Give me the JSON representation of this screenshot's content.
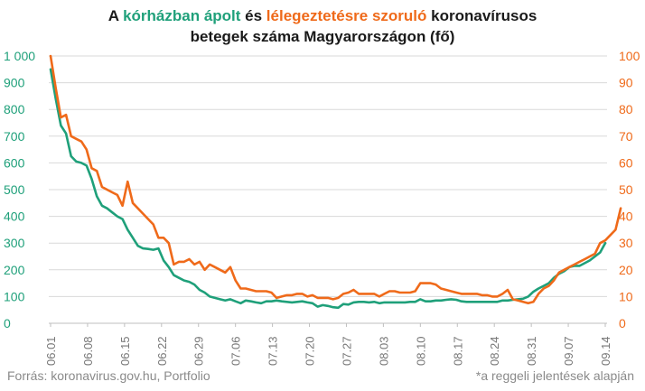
{
  "title": {
    "line1": {
      "prefix": "A ",
      "green": "kórházban ápolt",
      "middle": " és ",
      "orange": "lélegeztetésre szoruló",
      "suffix": " koronavírusos"
    },
    "line2": "betegek száma Magyarországon  (fő)"
  },
  "footer": {
    "source": "Forrás: koronavirus.gov.hu, Portfolio",
    "note": "*a reggeli jelentések alapján"
  },
  "colors": {
    "hospitalized": "#1fa07a",
    "ventilated": "#ef6a1a",
    "grid": "#d9d9d9",
    "axis_text": "#777777"
  },
  "chart_data": {
    "type": "line",
    "x_tick_labels": [
      "06.01",
      "06.08",
      "06.15",
      "06.22",
      "06.29",
      "07.06",
      "07.13",
      "07.20",
      "07.27",
      "08.03",
      "08.10",
      "08.17",
      "08.24",
      "08.31",
      "09.07",
      "09.14"
    ],
    "y_left": {
      "range": [
        0,
        1000
      ],
      "ticks": [
        "0",
        "100",
        "200",
        "300",
        "400",
        "500",
        "600",
        "700",
        "800",
        "900",
        "1 000"
      ]
    },
    "y_right": {
      "range": [
        0,
        100
      ],
      "ticks": [
        "0",
        "10",
        "20",
        "30",
        "40",
        "50",
        "60",
        "70",
        "80",
        "90",
        "100"
      ]
    },
    "grid": true,
    "series": [
      {
        "axis": "left",
        "color": "#1fa07a",
        "values": [
          950,
          840,
          740,
          710,
          625,
          605,
          600,
          590,
          540,
          475,
          440,
          430,
          415,
          400,
          390,
          350,
          320,
          290,
          280,
          278,
          275,
          280,
          235,
          210,
          180,
          170,
          160,
          155,
          145,
          125,
          115,
          100,
          95,
          90,
          85,
          90,
          82,
          75,
          85,
          82,
          78,
          75,
          82,
          82,
          85,
          82,
          80,
          78,
          80,
          82,
          78,
          75,
          62,
          68,
          65,
          60,
          58,
          72,
          70,
          78,
          80,
          80,
          78,
          80,
          75,
          78,
          78,
          78,
          78,
          78,
          80,
          80,
          90,
          82,
          82,
          85,
          85,
          88,
          90,
          88,
          82,
          80,
          80,
          80,
          80,
          80,
          80,
          80,
          85,
          85,
          88,
          90,
          92,
          100,
          118,
          130,
          140,
          150,
          170,
          185,
          195,
          210,
          215,
          215,
          225,
          235,
          250,
          265,
          300
        ]
      },
      {
        "axis": "right",
        "color": "#ef6a1a",
        "values": [
          100,
          88,
          77,
          78,
          70,
          69,
          68,
          65,
          58,
          57,
          51,
          50,
          49,
          48,
          44,
          53,
          45,
          43,
          41,
          39,
          37,
          32,
          32,
          30,
          22,
          23,
          23,
          24,
          22,
          23,
          20,
          22,
          21,
          20,
          19,
          21,
          16,
          13,
          13,
          12.5,
          12,
          12,
          12,
          11.5,
          9.5,
          10,
          10.5,
          10.5,
          11,
          11,
          10,
          10.5,
          9.5,
          9.5,
          9.5,
          9,
          9.5,
          11,
          11.5,
          12.5,
          11,
          11,
          11,
          11,
          10,
          11,
          12,
          12,
          11.5,
          11.5,
          11.5,
          12,
          15,
          15,
          15,
          14.5,
          13,
          12.5,
          12,
          11.5,
          11,
          11,
          11,
          11,
          10.5,
          10.5,
          10,
          10,
          11,
          12.5,
          9,
          8.5,
          8,
          7.5,
          8,
          11,
          13,
          14,
          16,
          19,
          20,
          21,
          22,
          23,
          24,
          25,
          26,
          30,
          31,
          33,
          35,
          43
        ]
      }
    ]
  }
}
